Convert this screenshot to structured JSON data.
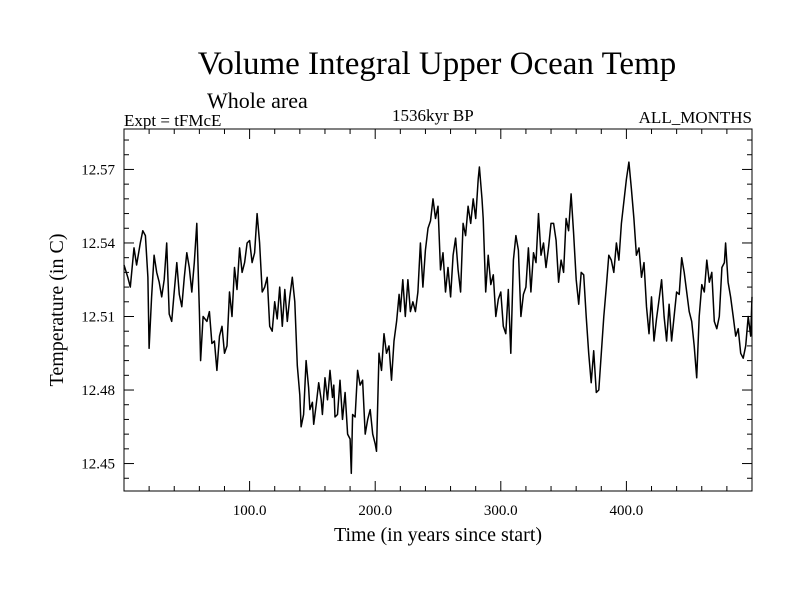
{
  "chart_data": {
    "type": "line",
    "title": "Volume Integral Upper Ocean Temp",
    "subtitle": "Whole area",
    "experiment": "Expt = tFMcE",
    "period": "1536kyr BP",
    "months": "ALL_MONTHS",
    "xlabel": "Time (in years since start)",
    "ylabel": "Temperature (in C)",
    "xlim": [
      0,
      500
    ],
    "ylim": [
      12.4388,
      12.5865
    ],
    "x_ticks": [
      100,
      200,
      300,
      400
    ],
    "x_tick_labels": [
      "100.0",
      "200.0",
      "300.0",
      "400.0"
    ],
    "y_ticks": [
      12.45,
      12.48,
      12.51,
      12.54,
      12.57
    ],
    "y_tick_labels": [
      "12.45",
      "12.48",
      "12.51",
      "12.54",
      "12.57"
    ],
    "grid": false,
    "series": [
      {
        "name": "Temperature",
        "points": [
          [
            0,
            12.531
          ],
          [
            3,
            12.526
          ],
          [
            5,
            12.522
          ],
          [
            8,
            12.538
          ],
          [
            10,
            12.531
          ],
          [
            13,
            12.54
          ],
          [
            15,
            12.545
          ],
          [
            17,
            12.543
          ],
          [
            19,
            12.526
          ],
          [
            20,
            12.497
          ],
          [
            22,
            12.518
          ],
          [
            24,
            12.535
          ],
          [
            26,
            12.528
          ],
          [
            28,
            12.524
          ],
          [
            30,
            12.518
          ],
          [
            32,
            12.525
          ],
          [
            34,
            12.54
          ],
          [
            36,
            12.511
          ],
          [
            38,
            12.508
          ],
          [
            40,
            12.52
          ],
          [
            42,
            12.532
          ],
          [
            44,
            12.519
          ],
          [
            46,
            12.514
          ],
          [
            48,
            12.526
          ],
          [
            50,
            12.536
          ],
          [
            52,
            12.53
          ],
          [
            54,
            12.52
          ],
          [
            56,
            12.532
          ],
          [
            58,
            12.548
          ],
          [
            60,
            12.512
          ],
          [
            61,
            12.492
          ],
          [
            63,
            12.51
          ],
          [
            66,
            12.508
          ],
          [
            68,
            12.512
          ],
          [
            70,
            12.499
          ],
          [
            72,
            12.5
          ],
          [
            74,
            12.488
          ],
          [
            76,
            12.502
          ],
          [
            78,
            12.506
          ],
          [
            80,
            12.495
          ],
          [
            82,
            12.498
          ],
          [
            84,
            12.52
          ],
          [
            86,
            12.51
          ],
          [
            88,
            12.53
          ],
          [
            90,
            12.521
          ],
          [
            92,
            12.538
          ],
          [
            94,
            12.528
          ],
          [
            96,
            12.532
          ],
          [
            98,
            12.54
          ],
          [
            100,
            12.541
          ],
          [
            102,
            12.532
          ],
          [
            104,
            12.536
          ],
          [
            106,
            12.552
          ],
          [
            108,
            12.54
          ],
          [
            110,
            12.52
          ],
          [
            112,
            12.522
          ],
          [
            114,
            12.526
          ],
          [
            116,
            12.506
          ],
          [
            118,
            12.504
          ],
          [
            120,
            12.516
          ],
          [
            122,
            12.509
          ],
          [
            124,
            12.522
          ],
          [
            126,
            12.506
          ],
          [
            128,
            12.521
          ],
          [
            130,
            12.508
          ],
          [
            132,
            12.518
          ],
          [
            134,
            12.526
          ],
          [
            136,
            12.516
          ],
          [
            138,
            12.49
          ],
          [
            140,
            12.478
          ],
          [
            141,
            12.465
          ],
          [
            143,
            12.47
          ],
          [
            145,
            12.492
          ],
          [
            147,
            12.481
          ],
          [
            148,
            12.472
          ],
          [
            150,
            12.475
          ],
          [
            151,
            12.466
          ],
          [
            153,
            12.474
          ],
          [
            155,
            12.483
          ],
          [
            157,
            12.476
          ],
          [
            158,
            12.47
          ],
          [
            160,
            12.485
          ],
          [
            162,
            12.476
          ],
          [
            164,
            12.488
          ],
          [
            166,
            12.477
          ],
          [
            167,
            12.482
          ],
          [
            168,
            12.469
          ],
          [
            170,
            12.47
          ],
          [
            172,
            12.484
          ],
          [
            174,
            12.468
          ],
          [
            176,
            12.479
          ],
          [
            178,
            12.462
          ],
          [
            180,
            12.46
          ],
          [
            181,
            12.446
          ],
          [
            182,
            12.47
          ],
          [
            184,
            12.469
          ],
          [
            186,
            12.488
          ],
          [
            188,
            12.482
          ],
          [
            190,
            12.484
          ],
          [
            192,
            12.462
          ],
          [
            194,
            12.468
          ],
          [
            196,
            12.472
          ],
          [
            198,
            12.462
          ],
          [
            200,
            12.458
          ],
          [
            201,
            12.455
          ],
          [
            203,
            12.495
          ],
          [
            205,
            12.488
          ],
          [
            207,
            12.503
          ],
          [
            209,
            12.495
          ],
          [
            211,
            12.498
          ],
          [
            213,
            12.484
          ],
          [
            215,
            12.5
          ],
          [
            217,
            12.508
          ],
          [
            219,
            12.519
          ],
          [
            220,
            12.512
          ],
          [
            222,
            12.525
          ],
          [
            224,
            12.51
          ],
          [
            226,
            12.525
          ],
          [
            228,
            12.512
          ],
          [
            230,
            12.516
          ],
          [
            232,
            12.512
          ],
          [
            234,
            12.52
          ],
          [
            236,
            12.54
          ],
          [
            238,
            12.522
          ],
          [
            240,
            12.537
          ],
          [
            242,
            12.546
          ],
          [
            244,
            12.549
          ],
          [
            246,
            12.558
          ],
          [
            248,
            12.55
          ],
          [
            250,
            12.555
          ],
          [
            252,
            12.529
          ],
          [
            254,
            12.536
          ],
          [
            256,
            12.52
          ],
          [
            258,
            12.53
          ],
          [
            260,
            12.518
          ],
          [
            262,
            12.535
          ],
          [
            264,
            12.542
          ],
          [
            266,
            12.529
          ],
          [
            268,
            12.52
          ],
          [
            270,
            12.548
          ],
          [
            272,
            12.543
          ],
          [
            274,
            12.555
          ],
          [
            276,
            12.548
          ],
          [
            278,
            12.558
          ],
          [
            280,
            12.55
          ],
          [
            282,
            12.566
          ],
          [
            283,
            12.571
          ],
          [
            285,
            12.558
          ],
          [
            286,
            12.55
          ],
          [
            288,
            12.52
          ],
          [
            290,
            12.535
          ],
          [
            292,
            12.523
          ],
          [
            294,
            12.527
          ],
          [
            296,
            12.51
          ],
          [
            298,
            12.517
          ],
          [
            300,
            12.52
          ],
          [
            302,
            12.506
          ],
          [
            304,
            12.503
          ],
          [
            306,
            12.521
          ],
          [
            308,
            12.495
          ],
          [
            310,
            12.533
          ],
          [
            312,
            12.543
          ],
          [
            314,
            12.537
          ],
          [
            316,
            12.51
          ],
          [
            318,
            12.519
          ],
          [
            320,
            12.522
          ],
          [
            322,
            12.538
          ],
          [
            324,
            12.52
          ],
          [
            326,
            12.536
          ],
          [
            328,
            12.532
          ],
          [
            330,
            12.552
          ],
          [
            332,
            12.535
          ],
          [
            334,
            12.54
          ],
          [
            336,
            12.53
          ],
          [
            338,
            12.538
          ],
          [
            340,
            12.548
          ],
          [
            342,
            12.548
          ],
          [
            344,
            12.541
          ],
          [
            346,
            12.524
          ],
          [
            348,
            12.533
          ],
          [
            350,
            12.528
          ],
          [
            352,
            12.55
          ],
          [
            354,
            12.545
          ],
          [
            356,
            12.56
          ],
          [
            358,
            12.544
          ],
          [
            360,
            12.525
          ],
          [
            362,
            12.515
          ],
          [
            364,
            12.528
          ],
          [
            366,
            12.527
          ],
          [
            368,
            12.51
          ],
          [
            370,
            12.495
          ],
          [
            372,
            12.483
          ],
          [
            374,
            12.496
          ],
          [
            376,
            12.479
          ],
          [
            378,
            12.48
          ],
          [
            380,
            12.495
          ],
          [
            382,
            12.51
          ],
          [
            384,
            12.522
          ],
          [
            386,
            12.535
          ],
          [
            388,
            12.533
          ],
          [
            390,
            12.528
          ],
          [
            392,
            12.54
          ],
          [
            394,
            12.533
          ],
          [
            396,
            12.548
          ],
          [
            398,
            12.557
          ],
          [
            400,
            12.566
          ],
          [
            402,
            12.573
          ],
          [
            404,
            12.562
          ],
          [
            406,
            12.55
          ],
          [
            408,
            12.535
          ],
          [
            410,
            12.538
          ],
          [
            412,
            12.526
          ],
          [
            414,
            12.532
          ],
          [
            416,
            12.514
          ],
          [
            418,
            12.503
          ],
          [
            420,
            12.518
          ],
          [
            422,
            12.5
          ],
          [
            424,
            12.509
          ],
          [
            426,
            12.517
          ],
          [
            428,
            12.525
          ],
          [
            430,
            12.51
          ],
          [
            432,
            12.5
          ],
          [
            434,
            12.515
          ],
          [
            436,
            12.5
          ],
          [
            438,
            12.51
          ],
          [
            440,
            12.52
          ],
          [
            442,
            12.519
          ],
          [
            444,
            12.534
          ],
          [
            446,
            12.528
          ],
          [
            448,
            12.52
          ],
          [
            450,
            12.512
          ],
          [
            452,
            12.508
          ],
          [
            454,
            12.498
          ],
          [
            456,
            12.485
          ],
          [
            458,
            12.51
          ],
          [
            460,
            12.523
          ],
          [
            462,
            12.52
          ],
          [
            464,
            12.533
          ],
          [
            466,
            12.524
          ],
          [
            468,
            12.528
          ],
          [
            470,
            12.508
          ],
          [
            472,
            12.505
          ],
          [
            474,
            12.51
          ],
          [
            476,
            12.53
          ],
          [
            478,
            12.532
          ],
          [
            479,
            12.54
          ],
          [
            481,
            12.524
          ],
          [
            483,
            12.518
          ],
          [
            485,
            12.51
          ],
          [
            487,
            12.502
          ],
          [
            489,
            12.505
          ],
          [
            491,
            12.495
          ],
          [
            493,
            12.493
          ],
          [
            495,
            12.498
          ],
          [
            497,
            12.51
          ],
          [
            499,
            12.502
          ],
          [
            500,
            12.518
          ]
        ]
      }
    ]
  }
}
